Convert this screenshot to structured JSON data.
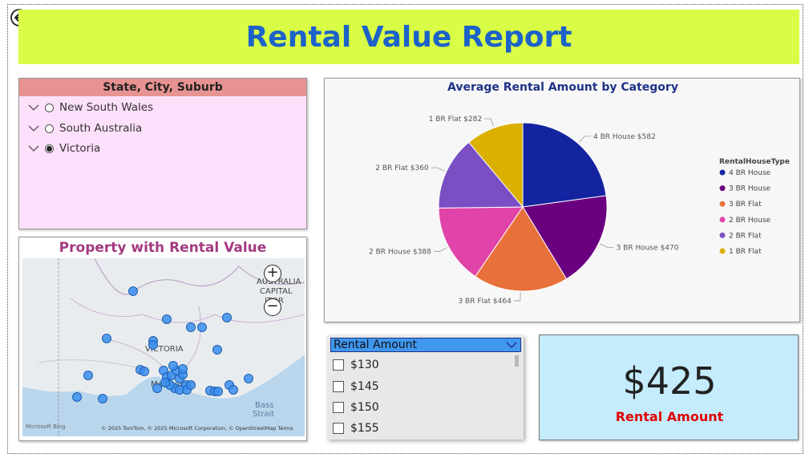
{
  "report": {
    "title": "Rental Value Report"
  },
  "slicer": {
    "header": "State, City, Suburb",
    "items": [
      {
        "label": "New South Wales",
        "selected": false
      },
      {
        "label": "South Australia",
        "selected": false
      },
      {
        "label": "Victoria",
        "selected": true
      }
    ]
  },
  "map": {
    "title": "Property with Rental Value",
    "labels": {
      "victoria": "VICTORIA",
      "act1": "AUSTRALIA",
      "act2": "CAPITAL",
      "act3": "ITOR",
      "bass1": "Bass",
      "bass2": "Strait",
      "melbourne": "Melbourne"
    },
    "attribution": "© 2025 TomTom, © 2025 Microsoft Corporation, © OpenStreetMap  Terms",
    "brand": "Microsoft Bing",
    "zoom_in": "+",
    "zoom_out": "−"
  },
  "chart_data": {
    "type": "pie",
    "title": "Average Rental Amount by Category",
    "legend_title": "RentalHouseType",
    "legend_position": "right",
    "categories": [
      "4 BR House",
      "3 BR House",
      "3 BR Flat",
      "2 BR House",
      "2 BR Flat",
      "1 BR Flat"
    ],
    "values": [
      582,
      470,
      464,
      388,
      360,
      282
    ],
    "data_labels": [
      "4 BR House $582",
      "3 BR House $470",
      "3 BR Flat $464",
      "2 BR House $388",
      "2 BR Flat $360",
      "1 BR Flat $282"
    ],
    "colors": [
      "#1424a0",
      "#6a0080",
      "#e8703a",
      "#e044a8",
      "#7a4fc4",
      "#dbb000"
    ]
  },
  "amount_filter": {
    "header": "Rental Amount",
    "items": [
      "$130",
      "$145",
      "$150",
      "$155"
    ]
  },
  "card": {
    "value": "$425",
    "label": "Rental Amount"
  }
}
